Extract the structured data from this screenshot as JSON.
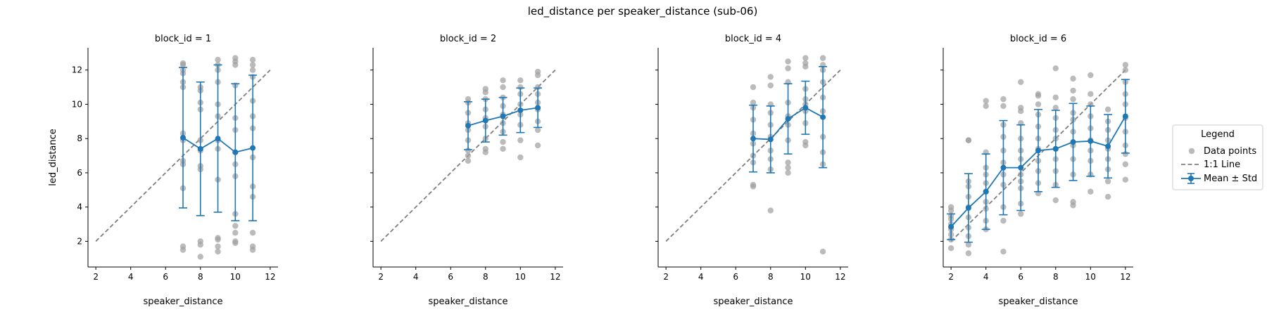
{
  "figure": {
    "title": "led_distance per speaker_distance (sub-06)",
    "xlabel": "speaker_distance",
    "ylabel": "led_distance"
  },
  "legend": {
    "title": "Legend",
    "items": [
      {
        "label": "Data points"
      },
      {
        "label": "1:1 Line"
      },
      {
        "label": "Mean ± Std"
      }
    ]
  },
  "colors": {
    "points": "#9e9e9e",
    "mean": "#1f77b4",
    "identity": "#7f7f7f",
    "axis": "#000000"
  },
  "chart_data": [
    {
      "type": "scatter",
      "title": "block_id = 1",
      "xlabel": "speaker_distance",
      "ylabel": "led_distance",
      "xlim": [
        1.55,
        12.45
      ],
      "ylim": [
        0.5,
        13.3
      ],
      "xticks": [
        2,
        4,
        6,
        8,
        10,
        12
      ],
      "yticks": [
        2,
        4,
        6,
        8,
        10,
        12
      ],
      "identity_line": {
        "x": [
          2,
          12
        ],
        "y": [
          2,
          12
        ]
      },
      "points": [
        {
          "x": 7,
          "y": [
            1.5,
            1.7,
            5.1,
            6.5,
            6.7,
            7.9,
            8.3,
            11.0,
            11.3,
            11.8,
            12.0,
            12.3,
            12.4
          ]
        },
        {
          "x": 8,
          "y": [
            1.1,
            1.8,
            2.0,
            6.2,
            6.4,
            7.3,
            7.9,
            9.7,
            10.1,
            10.8,
            11.0
          ]
        },
        {
          "x": 9,
          "y": [
            1.4,
            1.7,
            2.1,
            2.2,
            5.6,
            7.4,
            7.9,
            9.3,
            10.0,
            11.3,
            12.0,
            12.3,
            12.6
          ]
        },
        {
          "x": 10,
          "y": [
            1.9,
            2.0,
            2.5,
            2.9,
            3.6,
            5.8,
            6.5,
            7.2,
            8.5,
            9.2,
            11.1,
            12.3,
            12.5,
            12.7
          ]
        },
        {
          "x": 11,
          "y": [
            1.5,
            1.7,
            2.5,
            4.6,
            5.2,
            6.9,
            8.6,
            9.3,
            10.2,
            11.6,
            12.0,
            12.3,
            12.6
          ]
        }
      ],
      "series": [
        {
          "name": "Mean ± Std",
          "x": [
            7,
            8,
            9,
            10,
            11
          ],
          "mean": [
            8.05,
            7.4,
            8.0,
            7.2,
            7.45
          ],
          "std": [
            4.1,
            3.9,
            4.3,
            4.0,
            4.25
          ]
        }
      ]
    },
    {
      "type": "scatter",
      "title": "block_id = 2",
      "xlabel": "speaker_distance",
      "ylabel": "",
      "xlim": [
        1.55,
        12.45
      ],
      "ylim": [
        0.5,
        13.3
      ],
      "xticks": [
        2,
        4,
        6,
        8,
        10,
        12
      ],
      "yticks": [
        2,
        4,
        6,
        8,
        10,
        12
      ],
      "identity_line": {
        "x": [
          2,
          12
        ],
        "y": [
          2,
          12
        ]
      },
      "points": [
        {
          "x": 7,
          "y": [
            6.7,
            7.0,
            7.3,
            7.9,
            8.5,
            8.9,
            9.5,
            10.1,
            10.3
          ]
        },
        {
          "x": 8,
          "y": [
            7.2,
            7.4,
            8.0,
            8.7,
            9.2,
            9.7,
            10.3,
            10.7,
            10.9
          ]
        },
        {
          "x": 9,
          "y": [
            7.4,
            7.8,
            8.4,
            8.9,
            9.4,
            9.9,
            10.4,
            11.0,
            11.4
          ]
        },
        {
          "x": 10,
          "y": [
            6.9,
            7.9,
            8.8,
            9.4,
            10.0,
            10.6,
            11.0,
            11.4
          ]
        },
        {
          "x": 11,
          "y": [
            7.6,
            8.5,
            9.0,
            9.7,
            10.1,
            10.6,
            11.0,
            11.7,
            11.9
          ]
        }
      ],
      "series": [
        {
          "name": "Mean ± Std",
          "x": [
            7,
            8,
            9,
            10,
            11
          ],
          "mean": [
            8.75,
            9.05,
            9.3,
            9.65,
            9.8
          ],
          "std": [
            1.4,
            1.25,
            1.1,
            1.3,
            1.15
          ]
        }
      ]
    },
    {
      "type": "scatter",
      "title": "block_id = 4",
      "xlabel": "speaker_distance",
      "ylabel": "",
      "xlim": [
        1.55,
        12.45
      ],
      "ylim": [
        0.5,
        13.3
      ],
      "xticks": [
        2,
        4,
        6,
        8,
        10,
        12
      ],
      "yticks": [
        2,
        4,
        6,
        8,
        10,
        12
      ],
      "identity_line": {
        "x": [
          2,
          12
        ],
        "y": [
          2,
          12
        ]
      },
      "points": [
        {
          "x": 7,
          "y": [
            5.2,
            5.3,
            6.6,
            7.0,
            7.7,
            8.3,
            9.1,
            9.8,
            10.1,
            11.0
          ]
        },
        {
          "x": 8,
          "y": [
            3.8,
            6.2,
            6.8,
            7.3,
            8.1,
            8.8,
            9.5,
            10.0,
            11.1,
            11.6
          ]
        },
        {
          "x": 9,
          "y": [
            6.0,
            6.3,
            6.6,
            7.9,
            8.8,
            9.3,
            10.1,
            11.3,
            12.1,
            12.5
          ]
        },
        {
          "x": 10,
          "y": [
            7.6,
            7.8,
            8.9,
            9.6,
            10.0,
            10.3,
            10.9,
            12.2,
            12.4,
            12.7
          ]
        },
        {
          "x": 11,
          "y": [
            1.4,
            6.5,
            7.2,
            8.1,
            9.6,
            10.4,
            11.3,
            12.0,
            12.3,
            12.7
          ]
        }
      ],
      "series": [
        {
          "name": "Mean ± Std",
          "x": [
            7,
            8,
            9,
            10,
            11
          ],
          "mean": [
            8.0,
            7.95,
            9.15,
            9.8,
            9.25
          ],
          "std": [
            1.95,
            1.95,
            2.05,
            1.55,
            2.95
          ]
        }
      ]
    },
    {
      "type": "scatter",
      "title": "block_id = 6",
      "xlabel": "speaker_distance",
      "ylabel": "",
      "xlim": [
        1.55,
        12.45
      ],
      "ylim": [
        0.5,
        13.3
      ],
      "xticks": [
        2,
        4,
        6,
        8,
        10,
        12
      ],
      "yticks": [
        2,
        4,
        6,
        8,
        10,
        12
      ],
      "identity_line": {
        "x": [
          2,
          12
        ],
        "y": [
          2,
          12
        ]
      },
      "points": [
        {
          "x": 2,
          "y": [
            1.6,
            2.1,
            2.4,
            2.7,
            3.0,
            3.3,
            3.5,
            3.8,
            4.0
          ]
        },
        {
          "x": 3,
          "y": [
            1.3,
            1.8,
            2.3,
            2.8,
            3.4,
            4.0,
            4.6,
            5.2,
            5.5,
            7.9,
            7.9
          ]
        },
        {
          "x": 4,
          "y": [
            2.7,
            3.2,
            3.9,
            4.3,
            4.9,
            5.4,
            5.9,
            6.3,
            7.2,
            9.9,
            10.2
          ]
        },
        {
          "x": 5,
          "y": [
            1.4,
            3.2,
            4.0,
            5.3,
            5.9,
            6.6,
            7.3,
            8.1,
            8.8,
            9.9,
            10.3
          ]
        },
        {
          "x": 6,
          "y": [
            3.6,
            4.2,
            5.1,
            5.5,
            5.9,
            6.8,
            7.3,
            8.0,
            8.9,
            9.6,
            9.8,
            11.3
          ]
        },
        {
          "x": 7,
          "y": [
            4.8,
            5.4,
            6.1,
            6.7,
            7.4,
            8.0,
            8.7,
            9.4,
            10.0,
            10.5,
            10.6
          ]
        },
        {
          "x": 8,
          "y": [
            4.4,
            5.3,
            6.1,
            6.8,
            7.4,
            8.0,
            8.5,
            9.2,
            9.8,
            10.4,
            12.1
          ]
        },
        {
          "x": 9,
          "y": [
            4.1,
            4.3,
            5.9,
            6.8,
            7.6,
            8.4,
            9.1,
            9.5,
            10.3,
            10.8,
            11.5
          ]
        },
        {
          "x": 10,
          "y": [
            4.9,
            5.9,
            6.7,
            7.3,
            7.9,
            8.6,
            9.3,
            10.0,
            10.6,
            11.7
          ]
        },
        {
          "x": 11,
          "y": [
            4.6,
            5.5,
            6.2,
            6.8,
            7.4,
            7.9,
            8.5,
            9.0,
            9.7
          ]
        },
        {
          "x": 12,
          "y": [
            5.6,
            6.5,
            7.1,
            7.6,
            8.4,
            9.2,
            10.0,
            10.6,
            11.3,
            12.0,
            12.3
          ]
        }
      ],
      "series": [
        {
          "name": "Mean ± Std",
          "x": [
            2,
            3,
            4,
            5,
            6,
            7,
            8,
            9,
            10,
            11,
            12
          ],
          "mean": [
            2.85,
            3.95,
            4.9,
            6.3,
            6.3,
            7.3,
            7.4,
            7.8,
            7.85,
            7.55,
            9.3
          ],
          "std": [
            0.75,
            2.0,
            2.2,
            2.75,
            2.5,
            2.4,
            2.25,
            2.25,
            2.05,
            1.85,
            2.15
          ]
        }
      ]
    }
  ]
}
